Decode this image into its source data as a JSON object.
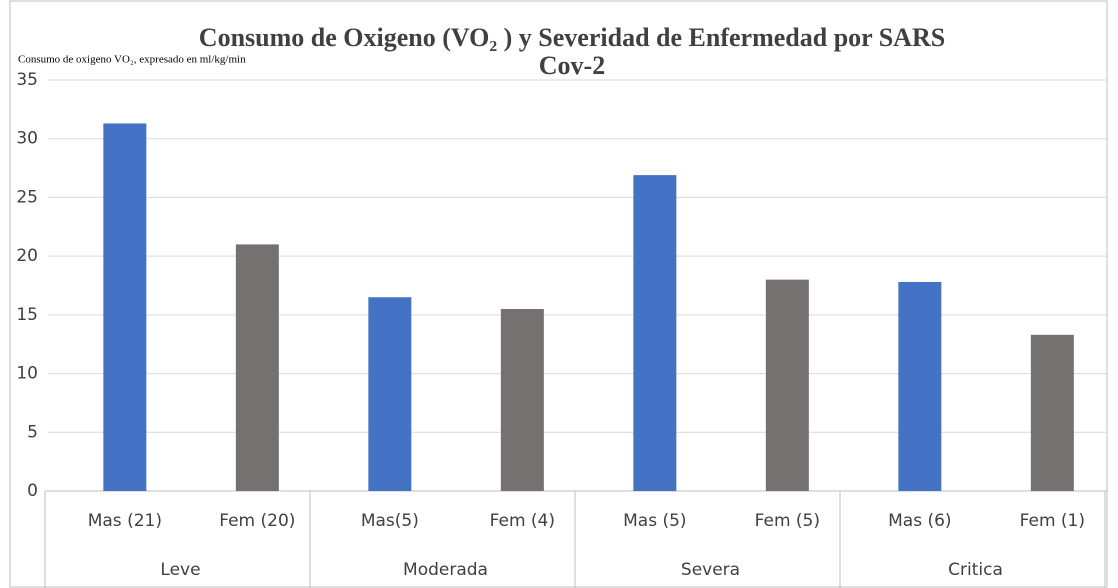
{
  "chart_data": {
    "type": "bar",
    "title": "Consumo de Oxigeno (VO₂ ) y Severidad de Enfermedad por SARS",
    "title_line2": "Cov-2",
    "ylabel": "Consumo de oxigeno VO₂, expresado en  ml/kg/min",
    "categories": [
      "Mas (21)",
      "Fem (20)",
      "Mas(5)",
      "Fem (4)",
      "Mas (5)",
      "Fem (5)",
      "Mas (6)",
      "Fem (1)"
    ],
    "groups": [
      "Leve",
      "Moderada",
      "Severa",
      "Critica"
    ],
    "values": [
      31.3,
      21.0,
      16.5,
      15.5,
      26.9,
      18.0,
      17.8,
      13.3
    ],
    "colors": [
      "#4472c4",
      "#767171",
      "#4472c4",
      "#767171",
      "#4472c4",
      "#767171",
      "#4472c4",
      "#767171"
    ],
    "ylim": [
      0,
      35
    ],
    "yticks": [
      0,
      5,
      10,
      15,
      20,
      25,
      30,
      35
    ],
    "grid": true
  }
}
